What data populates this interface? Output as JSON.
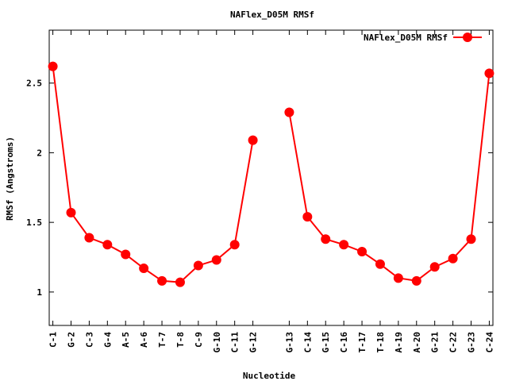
{
  "chart_data": {
    "type": "line",
    "title": "NAFlex_D05M RMSf",
    "xlabel": "Nucleotide",
    "ylabel": "RMSf (Angstroms)",
    "ylim": [
      0.76,
      2.88
    ],
    "yticks": [
      "1",
      "1.5",
      "2",
      "2.5"
    ],
    "ytick_values": [
      1,
      1.5,
      2,
      2.5
    ],
    "legend_position": "top-right",
    "series": [
      {
        "name": "NAFlex_D05M RMSf",
        "color": "#ff0000",
        "segments": [
          {
            "x": [
              1,
              2,
              3,
              4,
              5,
              6,
              7,
              8,
              9,
              10,
              11,
              12
            ],
            "labels": [
              "C-1",
              "G-2",
              "C-3",
              "G-4",
              "A-5",
              "A-6",
              "T-7",
              "T-8",
              "C-9",
              "G-10",
              "C-11",
              "G-12"
            ],
            "values": [
              2.62,
              1.57,
              1.39,
              1.34,
              1.27,
              1.17,
              1.08,
              1.07,
              1.19,
              1.23,
              1.34,
              2.09
            ]
          },
          {
            "x": [
              14,
              15,
              16,
              17,
              18,
              19,
              20,
              21,
              22,
              23,
              24,
              25
            ],
            "labels": [
              "G-13",
              "C-14",
              "G-15",
              "C-16",
              "T-17",
              "T-18",
              "A-19",
              "A-20",
              "G-21",
              "C-22",
              "G-23",
              "C-24"
            ],
            "values": [
              2.29,
              1.54,
              1.38,
              1.34,
              1.29,
              1.2,
              1.1,
              1.08,
              1.18,
              1.24,
              1.38,
              2.57
            ]
          }
        ]
      }
    ]
  }
}
